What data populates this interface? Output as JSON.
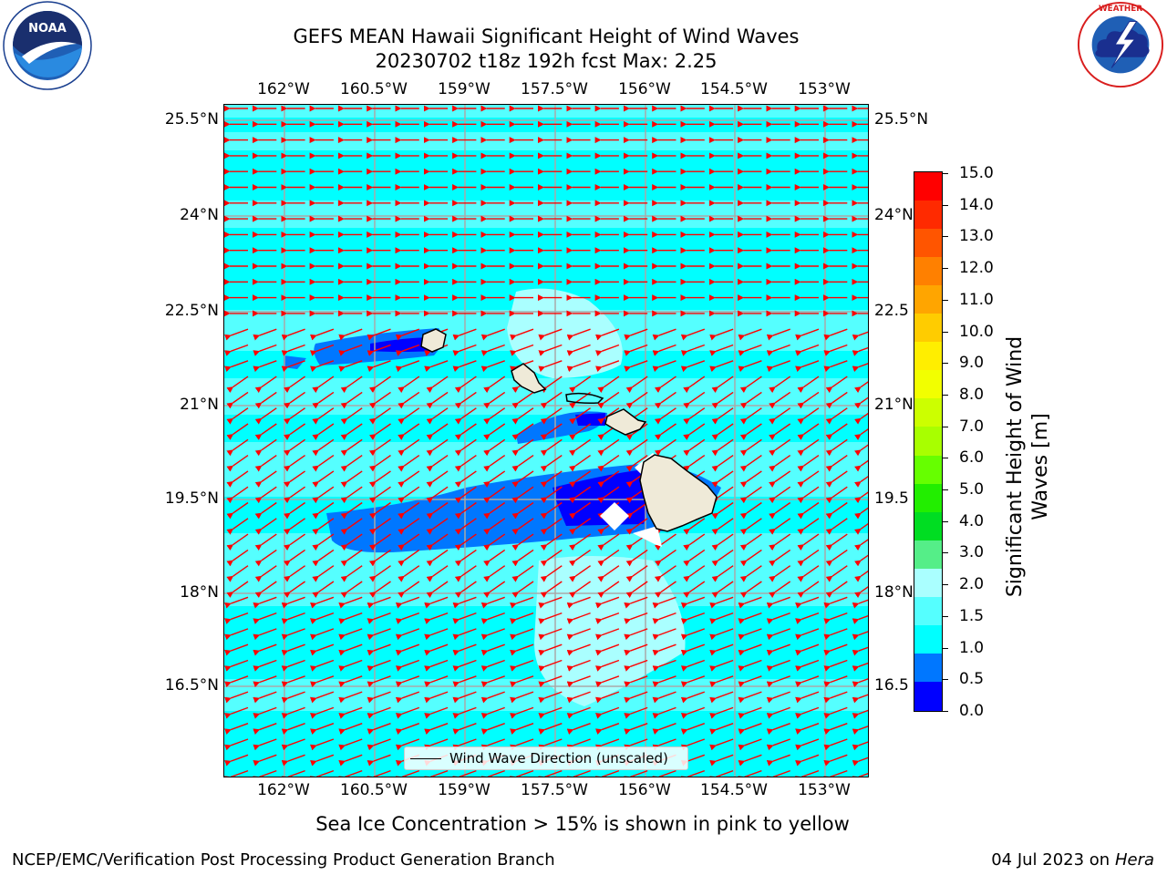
{
  "header": {
    "title_line1": "GEFS MEAN Hawaii Significant Height of Wind Waves",
    "title_line2": "20230702 t18z 192h fcst   Max: 2.25"
  },
  "logos": {
    "left": "noaa-logo",
    "left_text": "NOAA",
    "left_ring_text": "NATIONAL OCEANIC AND ATMOSPHERIC ADMINISTRATION · U.S. DEPARTMENT OF COMMERCE",
    "right": "nws-logo",
    "right_ring_text": "NATIONAL WEATHER SERVICE"
  },
  "map": {
    "lon_labels": [
      "162°W",
      "160.5°W",
      "159°W",
      "157.5°W",
      "156°W",
      "154.5°W",
      "153°W"
    ],
    "lat_labels": [
      "25.5°N",
      "24°N",
      "22.5°N",
      "21°N",
      "19.5°N",
      "18°N",
      "16.5°N"
    ],
    "lat_labels_right_visible": [
      "25.5°N",
      "24°N",
      "22.5",
      "21°N",
      "19.5",
      "18°N",
      "16.5"
    ],
    "legend_label": "Wind Wave Direction (unscaled)",
    "arrow_color": "#ff0000",
    "land_color": "#efead8",
    "grid_color": "#a9a9a9"
  },
  "colorbar": {
    "label": "Significant Height of Wind Waves [m]",
    "label_line1": "Significant Height of Wind",
    "label_line2": "Waves [m]",
    "ticks": [
      "15.0",
      "14.0",
      "13.0",
      "12.0",
      "11.0",
      "10.0",
      "9.0",
      "8.0",
      "7.0",
      "6.0",
      "5.0",
      "4.0",
      "3.0",
      "2.0",
      "1.5",
      "1.0",
      "0.5",
      "0.0"
    ],
    "colors_top_to_bottom": [
      "#ff0000",
      "#ff2a00",
      "#ff5500",
      "#ff8000",
      "#ffa500",
      "#ffcc00",
      "#ffee00",
      "#f2ff00",
      "#ccff00",
      "#a8ff00",
      "#66ff00",
      "#22ee00",
      "#00dd22",
      "#55ee88",
      "#aaffff",
      "#55ffff",
      "#00ffff",
      "#0077ff",
      "#0000ff"
    ]
  },
  "footer": {
    "note": "Sea Ice Concentration > 15% is shown in pink to yellow",
    "left": "NCEP/EMC/Verification Post Processing Product Generation Branch",
    "right_date": "04 Jul 2023 on ",
    "right_host": "Hera"
  }
}
